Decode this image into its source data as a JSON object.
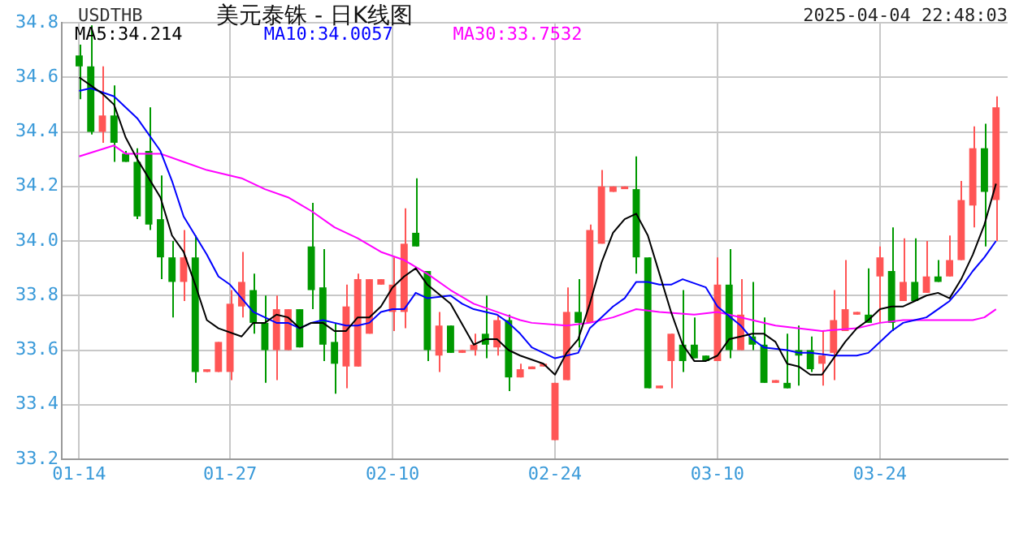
{
  "chart_data": {
    "type": "candlestick",
    "title": "美元泰铢 - 日K线图",
    "subtitle": "USDTHB",
    "annotations": [
      "2025-04-04 22:48:03"
    ],
    "x": [
      "2025-01-14",
      "2025-01-15",
      "2025-01-16",
      "2025-01-17",
      "2025-01-18",
      "2025-01-19",
      "2025-01-20",
      "2025-01-21",
      "2025-01-22",
      "2025-01-23",
      "2025-01-24",
      "2025-01-25",
      "2025-01-26",
      "2025-01-27",
      "2025-01-28",
      "2025-01-29",
      "2025-01-30",
      "2025-01-31",
      "2025-02-01",
      "2025-02-02",
      "2025-02-03",
      "2025-02-04",
      "2025-02-05",
      "2025-02-06",
      "2025-02-07",
      "2025-02-08",
      "2025-02-09",
      "2025-02-10",
      "2025-02-11",
      "2025-02-12",
      "2025-02-13",
      "2025-02-14",
      "2025-02-15",
      "2025-02-16",
      "2025-02-17",
      "2025-02-18",
      "2025-02-19",
      "2025-02-20",
      "2025-02-21",
      "2025-02-22",
      "2025-02-23",
      "2025-02-24",
      "2025-02-25",
      "2025-02-26",
      "2025-02-27",
      "2025-02-28",
      "2025-03-01",
      "2025-03-02",
      "2025-03-03",
      "2025-03-04",
      "2025-03-05",
      "2025-03-06",
      "2025-03-07",
      "2025-03-08",
      "2025-03-09",
      "2025-03-10",
      "2025-03-11",
      "2025-03-12",
      "2025-03-13",
      "2025-03-14",
      "2025-03-15",
      "2025-03-16",
      "2025-03-17",
      "2025-03-18",
      "2025-03-19",
      "2025-03-20",
      "2025-03-21",
      "2025-03-22",
      "2025-03-23",
      "2025-03-24",
      "2025-03-25",
      "2025-03-26",
      "2025-03-27",
      "2025-03-28",
      "2025-03-29",
      "2025-03-30",
      "2025-03-31",
      "2025-04-01",
      "2025-04-02",
      "2025-04-03"
    ],
    "ohlc": [
      [
        34.68,
        34.72,
        34.52,
        34.64
      ],
      [
        34.64,
        34.79,
        34.39,
        34.4
      ],
      [
        34.4,
        34.64,
        34.36,
        34.46
      ],
      [
        34.46,
        34.57,
        34.29,
        34.36
      ],
      [
        34.32,
        34.33,
        34.29,
        34.29
      ],
      [
        34.29,
        34.34,
        34.08,
        34.09
      ],
      [
        34.33,
        34.49,
        34.04,
        34.06
      ],
      [
        34.08,
        34.24,
        33.86,
        33.94
      ],
      [
        33.94,
        34.0,
        33.72,
        33.85
      ],
      [
        33.85,
        34.04,
        33.78,
        33.94
      ],
      [
        33.94,
        34.02,
        33.48,
        33.52
      ],
      [
        33.52,
        33.53,
        33.52,
        33.53
      ],
      [
        33.52,
        33.63,
        33.52,
        33.63
      ],
      [
        33.52,
        33.82,
        33.49,
        33.77
      ],
      [
        33.76,
        33.96,
        33.72,
        33.85
      ],
      [
        33.82,
        33.88,
        33.66,
        33.7
      ],
      [
        33.7,
        33.8,
        33.48,
        33.6
      ],
      [
        33.6,
        33.8,
        33.49,
        33.75
      ],
      [
        33.6,
        33.75,
        33.6,
        33.75
      ],
      [
        33.75,
        33.75,
        33.61,
        33.61
      ],
      [
        33.98,
        34.14,
        33.75,
        33.82
      ],
      [
        33.83,
        33.97,
        33.56,
        33.62
      ],
      [
        33.63,
        33.7,
        33.44,
        33.55
      ],
      [
        33.54,
        33.84,
        33.46,
        33.76
      ],
      [
        33.54,
        33.88,
        33.54,
        33.86
      ],
      [
        33.66,
        33.86,
        33.66,
        33.86
      ],
      [
        33.84,
        33.86,
        33.84,
        33.86
      ],
      [
        33.74,
        33.94,
        33.67,
        33.84
      ],
      [
        33.74,
        34.12,
        33.68,
        33.99
      ],
      [
        34.03,
        34.23,
        33.98,
        33.98
      ],
      [
        33.89,
        33.89,
        33.56,
        33.6
      ],
      [
        33.58,
        33.74,
        33.52,
        33.69
      ],
      [
        33.69,
        33.69,
        33.59,
        33.59
      ],
      [
        33.59,
        33.6,
        33.59,
        33.6
      ],
      [
        33.6,
        33.66,
        33.58,
        33.62
      ],
      [
        33.66,
        33.8,
        33.57,
        33.62
      ],
      [
        33.61,
        33.73,
        33.58,
        33.71
      ],
      [
        33.71,
        33.73,
        33.45,
        33.5
      ],
      [
        33.5,
        33.55,
        33.5,
        33.53
      ],
      [
        33.53,
        33.54,
        33.53,
        33.54
      ],
      [
        33.54,
        33.55,
        33.54,
        33.55
      ],
      [
        33.27,
        33.48,
        33.27,
        33.48
      ],
      [
        33.49,
        33.83,
        33.49,
        33.74
      ],
      [
        33.74,
        33.86,
        33.61,
        33.7
      ],
      [
        33.7,
        34.06,
        33.7,
        34.04
      ],
      [
        33.99,
        34.26,
        33.99,
        34.2
      ],
      [
        34.18,
        34.2,
        34.18,
        34.2
      ],
      [
        34.19,
        34.2,
        34.19,
        34.2
      ],
      [
        34.19,
        34.31,
        33.88,
        33.94
      ],
      [
        33.94,
        33.94,
        33.46,
        33.46
      ],
      [
        33.46,
        33.47,
        33.46,
        33.47
      ],
      [
        33.56,
        33.66,
        33.46,
        33.66
      ],
      [
        33.62,
        33.82,
        33.52,
        33.56
      ],
      [
        33.62,
        33.72,
        33.57,
        33.57
      ],
      [
        33.58,
        33.58,
        33.56,
        33.56
      ],
      [
        33.56,
        33.94,
        33.56,
        33.84
      ],
      [
        33.84,
        33.97,
        33.57,
        33.6
      ],
      [
        33.6,
        33.86,
        33.6,
        33.73
      ],
      [
        33.65,
        33.85,
        33.6,
        33.62
      ],
      [
        33.62,
        33.72,
        33.48,
        33.48
      ],
      [
        33.48,
        33.49,
        33.48,
        33.49
      ],
      [
        33.48,
        33.66,
        33.46,
        33.46
      ],
      [
        33.6,
        33.69,
        33.47,
        33.58
      ],
      [
        33.6,
        33.65,
        33.52,
        33.53
      ],
      [
        33.55,
        33.67,
        33.47,
        33.58
      ],
      [
        33.59,
        33.82,
        33.49,
        33.71
      ],
      [
        33.67,
        33.93,
        33.67,
        33.75
      ],
      [
        33.73,
        33.74,
        33.73,
        33.74
      ],
      [
        33.73,
        33.9,
        33.7,
        33.7
      ],
      [
        33.87,
        33.98,
        33.7,
        33.94
      ],
      [
        33.89,
        34.05,
        33.67,
        33.7
      ],
      [
        33.78,
        34.01,
        33.78,
        33.85
      ],
      [
        33.85,
        34.01,
        33.78,
        33.78
      ],
      [
        33.81,
        34.0,
        33.81,
        33.87
      ],
      [
        33.87,
        33.93,
        33.85,
        33.85
      ],
      [
        33.87,
        34.02,
        33.87,
        33.93
      ],
      [
        33.93,
        34.22,
        33.93,
        34.15
      ],
      [
        34.13,
        34.42,
        34.05,
        34.34
      ],
      [
        34.34,
        34.43,
        33.98,
        34.18
      ],
      [
        34.15,
        34.53,
        34.0,
        34.49
      ]
    ],
    "colors": [
      "#009900",
      "#009900",
      "#ff5555",
      "#009900",
      "#009900",
      "#009900",
      "#009900",
      "#009900",
      "#009900",
      "#ff5555",
      "#009900",
      "#ff5555",
      "#ff5555",
      "#ff5555",
      "#ff5555",
      "#009900",
      "#009900",
      "#ff5555",
      "#ff5555",
      "#009900",
      "#009900",
      "#009900",
      "#009900",
      "#ff5555",
      "#ff5555",
      "#ff5555",
      "#ff5555",
      "#ff5555",
      "#ff5555",
      "#009900",
      "#009900",
      "#ff5555",
      "#009900",
      "#ff5555",
      "#ff5555",
      "#009900",
      "#ff5555",
      "#009900",
      "#ff5555",
      "#ff5555",
      "#ff5555",
      "#ff5555",
      "#ff5555",
      "#009900",
      "#ff5555",
      "#ff5555",
      "#ff5555",
      "#ff5555",
      "#009900",
      "#009900",
      "#ff5555",
      "#ff5555",
      "#009900",
      "#009900",
      "#009900",
      "#ff5555",
      "#009900",
      "#ff5555",
      "#009900",
      "#009900",
      "#ff5555",
      "#009900",
      "#009900",
      "#009900",
      "#ff5555",
      "#ff5555",
      "#ff5555",
      "#ff5555",
      "#009900",
      "#ff5555",
      "#009900",
      "#ff5555",
      "#009900",
      "#ff5555",
      "#009900",
      "#ff5555",
      "#ff5555",
      "#ff5555",
      "#009900",
      "#ff5555"
    ],
    "series": [
      {
        "name": "MA5:34.214",
        "type": "line",
        "color": "#000000",
        "x": [
          "2025-01-14",
          "2025-01-16",
          "2025-01-17",
          "2025-01-18",
          "2025-01-19",
          "2025-01-21",
          "2025-01-22",
          "2025-01-23",
          "2025-01-24",
          "2025-01-25",
          "2025-01-26",
          "2025-01-28",
          "2025-01-29",
          "2025-01-30",
          "2025-01-31",
          "2025-02-01",
          "2025-02-02",
          "2025-02-03",
          "2025-02-04",
          "2025-02-05",
          "2025-02-06",
          "2025-02-07",
          "2025-02-08",
          "2025-02-09",
          "2025-02-10",
          "2025-02-11",
          "2025-02-12",
          "2025-02-13",
          "2025-02-15",
          "2025-02-17",
          "2025-02-18",
          "2025-02-19",
          "2025-02-20",
          "2025-02-21",
          "2025-02-23",
          "2025-02-24",
          "2025-02-25",
          "2025-02-26",
          "2025-02-27",
          "2025-02-28",
          "2025-03-01",
          "2025-03-02",
          "2025-03-03",
          "2025-03-04",
          "2025-03-05",
          "2025-03-06",
          "2025-03-07",
          "2025-03-08",
          "2025-03-09",
          "2025-03-10",
          "2025-03-11",
          "2025-03-12",
          "2025-03-13",
          "2025-03-14",
          "2025-03-15",
          "2025-03-16",
          "2025-03-17",
          "2025-03-18",
          "2025-03-19",
          "2025-03-20",
          "2025-03-21",
          "2025-03-22",
          "2025-03-23",
          "2025-03-24",
          "2025-03-25",
          "2025-03-26",
          "2025-03-27",
          "2025-03-28",
          "2025-03-29",
          "2025-03-30",
          "2025-03-31",
          "2025-04-01",
          "2025-04-02",
          "2025-04-03"
        ],
        "values": [
          34.6,
          34.54,
          34.5,
          34.38,
          34.3,
          34.16,
          34.02,
          33.96,
          33.84,
          33.71,
          33.68,
          33.65,
          33.7,
          33.7,
          33.73,
          33.72,
          33.68,
          33.7,
          33.7,
          33.67,
          33.67,
          33.72,
          33.72,
          33.76,
          33.83,
          33.87,
          33.9,
          33.84,
          33.77,
          33.62,
          33.64,
          33.64,
          33.6,
          33.58,
          33.55,
          33.51,
          33.59,
          33.64,
          33.77,
          33.92,
          34.03,
          34.08,
          34.1,
          34.02,
          33.88,
          33.74,
          33.62,
          33.56,
          33.56,
          33.58,
          33.64,
          33.65,
          33.66,
          33.66,
          33.63,
          33.55,
          33.54,
          33.51,
          33.51,
          33.57,
          33.63,
          33.68,
          33.71,
          33.75,
          33.76,
          33.76,
          33.78,
          33.8,
          33.81,
          33.79,
          33.86,
          33.95,
          34.06,
          34.21
        ]
      },
      {
        "name": "MA10:34.0057",
        "type": "line",
        "color": "#0000ff",
        "x": [
          "2025-01-14",
          "2025-01-15",
          "2025-01-17",
          "2025-01-19",
          "2025-01-21",
          "2025-01-22",
          "2025-01-23",
          "2025-01-24",
          "2025-01-25",
          "2025-01-26",
          "2025-01-27",
          "2025-01-28",
          "2025-01-29",
          "2025-01-30",
          "2025-01-31",
          "2025-02-01",
          "2025-02-02",
          "2025-02-03",
          "2025-02-04",
          "2025-02-05",
          "2025-02-06",
          "2025-02-07",
          "2025-02-08",
          "2025-02-09",
          "2025-02-10",
          "2025-02-11",
          "2025-02-12",
          "2025-02-13",
          "2025-02-15",
          "2025-02-16",
          "2025-02-17",
          "2025-02-19",
          "2025-02-20",
          "2025-02-21",
          "2025-02-22",
          "2025-02-23",
          "2025-02-24",
          "2025-02-25",
          "2025-02-26",
          "2025-02-27",
          "2025-02-28",
          "2025-03-01",
          "2025-03-02",
          "2025-03-03",
          "2025-03-04",
          "2025-03-05",
          "2025-03-06",
          "2025-03-07",
          "2025-03-09",
          "2025-03-10",
          "2025-03-12",
          "2025-03-13",
          "2025-03-14",
          "2025-03-16",
          "2025-03-17",
          "2025-03-18",
          "2025-03-20",
          "2025-03-22",
          "2025-03-23",
          "2025-03-24",
          "2025-03-25",
          "2025-03-26",
          "2025-03-27",
          "2025-03-28",
          "2025-03-29",
          "2025-03-30",
          "2025-03-31",
          "2025-04-01",
          "2025-04-02",
          "2025-04-03"
        ],
        "values": [
          34.55,
          34.56,
          34.53,
          34.45,
          34.33,
          34.22,
          34.09,
          34.02,
          33.95,
          33.87,
          33.84,
          33.79,
          33.74,
          33.72,
          33.7,
          33.7,
          33.68,
          33.7,
          33.71,
          33.7,
          33.69,
          33.69,
          33.7,
          33.74,
          33.75,
          33.75,
          33.81,
          33.79,
          33.8,
          33.77,
          33.75,
          33.73,
          33.7,
          33.66,
          33.61,
          33.59,
          33.57,
          33.58,
          33.59,
          33.68,
          33.72,
          33.76,
          33.79,
          33.85,
          33.85,
          33.84,
          33.84,
          33.86,
          33.83,
          33.76,
          33.69,
          33.64,
          33.61,
          33.6,
          33.59,
          33.59,
          33.58,
          33.58,
          33.59,
          33.63,
          33.67,
          33.7,
          33.71,
          33.72,
          33.75,
          33.78,
          33.83,
          33.89,
          33.94,
          34.0
        ]
      },
      {
        "name": "MA30:33.7532",
        "type": "line",
        "color": "#ff00ff",
        "x": [
          "2025-01-14",
          "2025-01-17",
          "2025-01-18",
          "2025-01-21",
          "2025-01-23",
          "2025-01-25",
          "2025-01-28",
          "2025-01-30",
          "2025-02-01",
          "2025-02-03",
          "2025-02-05",
          "2025-02-07",
          "2025-02-09",
          "2025-02-11",
          "2025-02-13",
          "2025-02-15",
          "2025-02-17",
          "2025-02-19",
          "2025-02-21",
          "2025-02-22",
          "2025-02-25",
          "2025-02-27",
          "2025-03-01",
          "2025-03-03",
          "2025-03-05",
          "2025-03-08",
          "2025-03-10",
          "2025-03-13",
          "2025-03-15",
          "2025-03-19",
          "2025-03-22",
          "2025-03-24",
          "2025-03-26",
          "2025-03-28",
          "2025-03-30",
          "2025-04-01",
          "2025-04-02",
          "2025-04-03"
        ],
        "values": [
          34.31,
          34.35,
          34.32,
          34.32,
          34.29,
          34.26,
          34.23,
          34.19,
          34.16,
          34.11,
          34.05,
          34.01,
          33.96,
          33.93,
          33.88,
          33.82,
          33.77,
          33.74,
          33.71,
          33.7,
          33.69,
          33.7,
          33.72,
          33.75,
          33.74,
          33.73,
          33.74,
          33.71,
          33.69,
          33.67,
          33.68,
          33.7,
          33.71,
          33.71,
          33.71,
          33.71,
          33.72,
          33.75
        ]
      }
    ],
    "xlim": [
      "2025-01-12T12:00",
      "2025-04-04"
    ],
    "xticks": [
      {
        "value": "2025-01-14",
        "label": "01-14"
      },
      {
        "value": "2025-01-27",
        "label": "01-27"
      },
      {
        "value": "2025-02-10",
        "label": "02-10"
      },
      {
        "value": "2025-02-24",
        "label": "02-24"
      },
      {
        "value": "2025-03-10",
        "label": "03-10"
      },
      {
        "value": "2025-03-24",
        "label": "03-24"
      }
    ],
    "ylim": [
      33.2,
      34.8
    ],
    "yticks": [
      {
        "value": 33.2,
        "label": "33.2"
      },
      {
        "value": 33.4,
        "label": "33.4"
      },
      {
        "value": 33.6,
        "label": "33.6"
      },
      {
        "value": 33.8,
        "label": "33.8"
      },
      {
        "value": 34,
        "label": "34.0"
      },
      {
        "value": 34.2,
        "label": "34.2"
      },
      {
        "value": 34.4,
        "label": "34.4"
      },
      {
        "value": 34.6,
        "label": "34.6"
      },
      {
        "value": 34.8,
        "label": "34.8"
      }
    ],
    "grid": true,
    "legend": "top left",
    "marker": "none",
    "line_style": "solid"
  }
}
